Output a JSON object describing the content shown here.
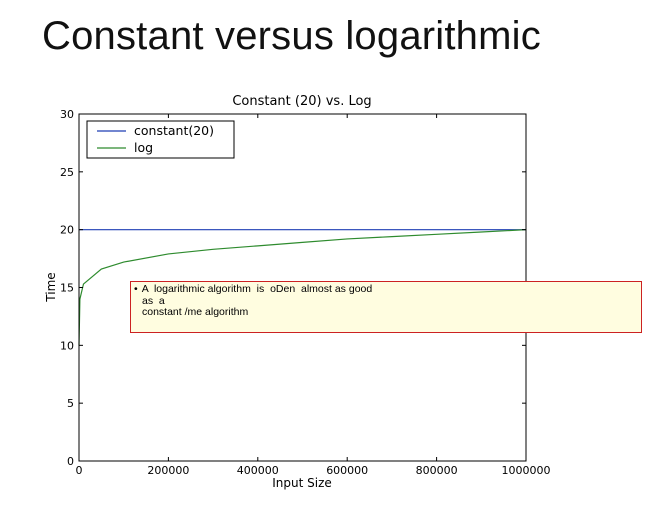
{
  "slide": {
    "title": "Constant versus logarithmic"
  },
  "colors": {
    "constant": "#1f3fb4",
    "log": "#2e8b2e",
    "callout_border": "#cc2222",
    "callout_bg": "#fffde0"
  },
  "chart_data": {
    "type": "line",
    "title": "Constant (20) vs. Log",
    "xlabel": "Input Size",
    "ylabel": "Time",
    "xlim": [
      0,
      1000000
    ],
    "ylim": [
      0,
      30
    ],
    "x_ticks": [
      0,
      200000,
      400000,
      600000,
      800000,
      1000000
    ],
    "y_ticks": [
      0,
      5,
      10,
      15,
      20,
      25,
      30
    ],
    "grid": false,
    "legend_position": "top-left",
    "series": [
      {
        "name": "constant(20)",
        "color": "#1f3fb4",
        "x": [
          0,
          1000000
        ],
        "y": [
          20,
          20
        ]
      },
      {
        "name": "log",
        "color": "#2e8b2e",
        "x": [
          1,
          2000,
          10000,
          50000,
          100000,
          200000,
          300000,
          400000,
          500000,
          600000,
          700000,
          800000,
          900000,
          1000000
        ],
        "y": [
          10.0,
          14.0,
          15.3,
          16.6,
          17.2,
          17.9,
          18.3,
          18.6,
          18.9,
          19.2,
          19.4,
          19.6,
          19.8,
          20.0
        ]
      }
    ]
  },
  "callout": {
    "bullet": "•",
    "line1": "A  logarithmic algorithm  is  oDen  almost as good",
    "line2": "as  a",
    "line3": "constant /me algorithm"
  }
}
